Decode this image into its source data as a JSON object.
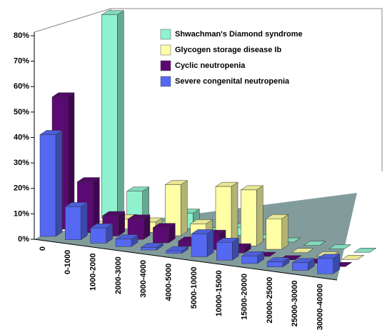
{
  "chart_data": {
    "type": "bar3d",
    "categories": [
      "0",
      "0-1000",
      "1000-2000",
      "2000-3000",
      "3000-4000",
      "4000-5000",
      "5000-10000",
      "10000-15000",
      "15000-20000",
      "20000-25000",
      "25000-30000",
      "30000-40000"
    ],
    "series": [
      {
        "name": "Shwachman's Diamond syndrome",
        "color": "#8ff2cf",
        "values": [
          0,
          80,
          12,
          0,
          6,
          0,
          3,
          0,
          0,
          0,
          0,
          0
        ]
      },
      {
        "name": "Glycogen storage disease Ib",
        "color": "#ffffa6",
        "values": [
          0,
          0,
          4,
          4,
          20,
          6,
          22,
          22,
          12,
          0,
          0,
          0
        ]
      },
      {
        "name": "Cyclic neutropenia",
        "color": "#5a0a72",
        "values": [
          52,
          20,
          8,
          8,
          6,
          2,
          6,
          2,
          0,
          0,
          0,
          0
        ]
      },
      {
        "name": "Severe congenital neutropenia",
        "color": "#5468f2",
        "values": [
          40,
          13,
          6,
          3,
          1,
          1,
          9,
          7,
          3,
          2,
          3,
          6
        ]
      }
    ],
    "ylim": [
      0,
      80
    ],
    "yticks": [
      {
        "value": 0,
        "label": "0%"
      },
      {
        "value": 10,
        "label": "10%"
      },
      {
        "value": 20,
        "label": "20%"
      },
      {
        "value": 30,
        "label": "30%"
      },
      {
        "value": 40,
        "label": "40%"
      },
      {
        "value": 50,
        "label": "50%"
      },
      {
        "value": 60,
        "label": "60%"
      },
      {
        "value": 70,
        "label": "70%"
      },
      {
        "value": 80,
        "label": "80%"
      }
    ]
  }
}
